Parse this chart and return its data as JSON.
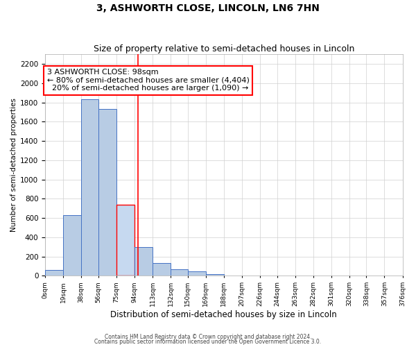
{
  "title": "3, ASHWORTH CLOSE, LINCOLN, LN6 7HN",
  "subtitle": "Size of property relative to semi-detached houses in Lincoln",
  "xlabel": "Distribution of semi-detached houses by size in Lincoln",
  "ylabel": "Number of semi-detached properties",
  "bin_edges": [
    0,
    19,
    38,
    56,
    75,
    94,
    113,
    132,
    150,
    169,
    188,
    207,
    226,
    244,
    263,
    282,
    301,
    320,
    338,
    357,
    376
  ],
  "bar_heights": [
    60,
    630,
    1830,
    1730,
    740,
    300,
    130,
    70,
    45,
    15,
    0,
    0,
    0,
    0,
    0,
    0,
    0,
    0,
    0,
    0
  ],
  "bar_color": "#b8cce4",
  "bar_edge_color": "#4472c4",
  "highlight_bar_color": "#c6d9f0",
  "highlight_bar_edge_color": "#ff0000",
  "property_line_x": 98,
  "property_line_color": "#ff0000",
  "annotation_line1": "3 ASHWORTH CLOSE: 98sqm",
  "annotation_line2": "← 80% of semi-detached houses are smaller (4,404)",
  "annotation_line3": "  20% of semi-detached houses are larger (1,090) →",
  "annotation_box_color": "#ffffff",
  "annotation_box_edge_color": "#ff0000",
  "ylim": [
    0,
    2300
  ],
  "yticks": [
    0,
    200,
    400,
    600,
    800,
    1000,
    1200,
    1400,
    1600,
    1800,
    2000,
    2200
  ],
  "tick_labels": [
    "0sqm",
    "19sqm",
    "38sqm",
    "56sqm",
    "75sqm",
    "94sqm",
    "113sqm",
    "132sqm",
    "150sqm",
    "169sqm",
    "188sqm",
    "207sqm",
    "226sqm",
    "244sqm",
    "263sqm",
    "282sqm",
    "301sqm",
    "320sqm",
    "338sqm",
    "357sqm",
    "376sqm"
  ],
  "footer1": "Contains HM Land Registry data © Crown copyright and database right 2024.",
  "footer2": "Contains public sector information licensed under the Open Government Licence 3.0.",
  "background_color": "#ffffff",
  "grid_color": "#d0d0d0",
  "title_fontsize": 10,
  "subtitle_fontsize": 9,
  "annotation_fontsize": 8,
  "highlight_bin_index": 4
}
